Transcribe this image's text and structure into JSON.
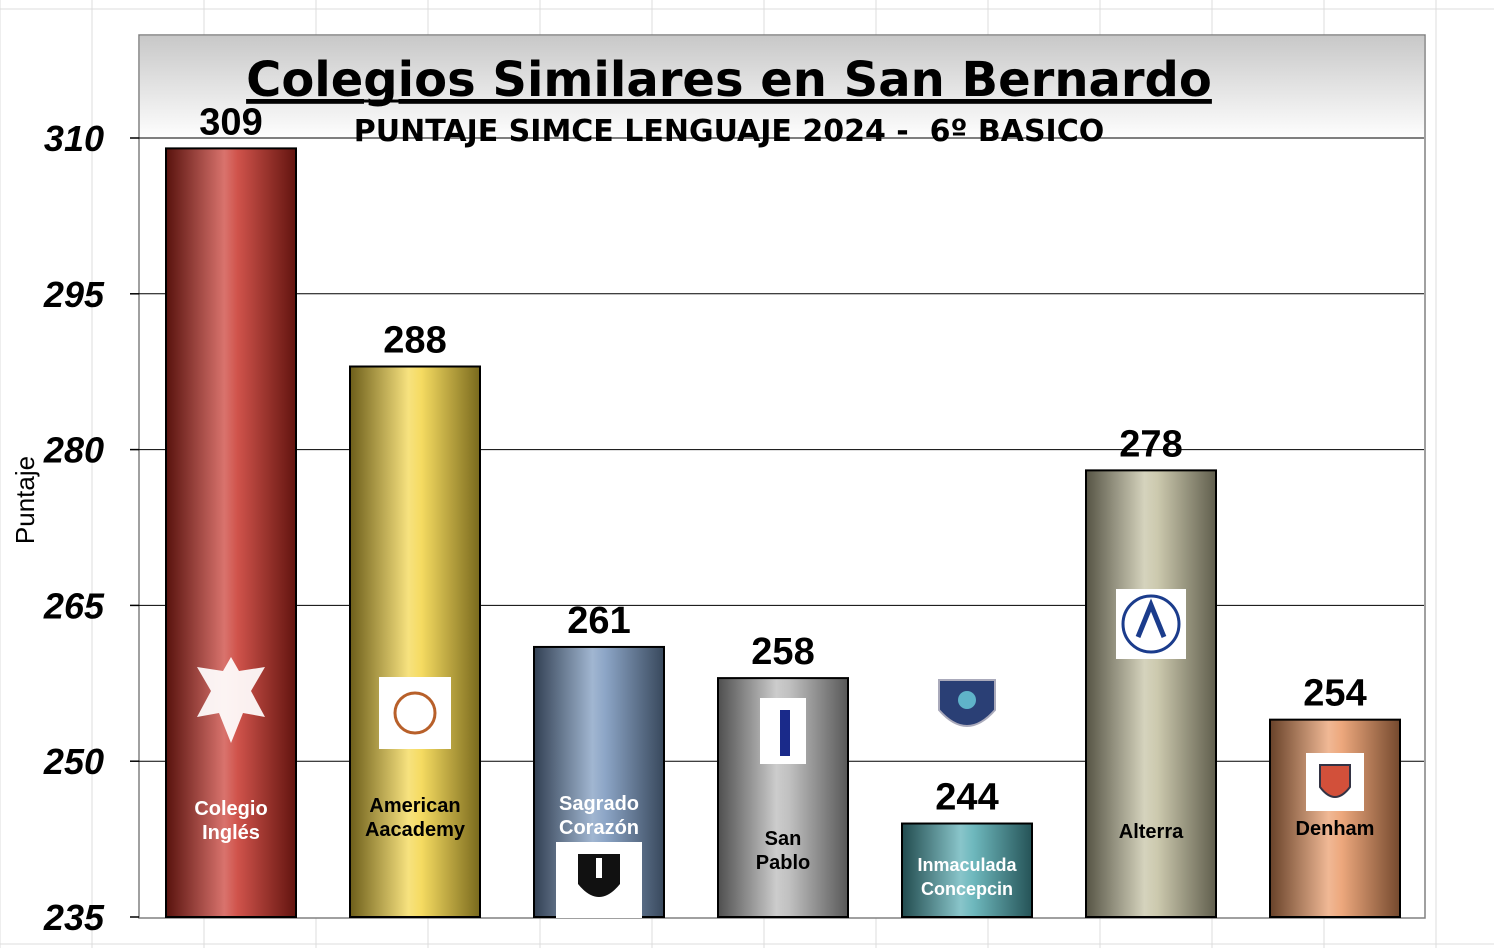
{
  "chart_data": {
    "type": "bar",
    "title": "Colegios Similares en San Bernardo",
    "subtitle": "PUNTAJE SIMCE LENGUAJE 2024 -  6º BASICO",
    "ylabel": "Puntaje",
    "ylim": [
      235,
      310
    ],
    "yticks": [
      310,
      295,
      280,
      265,
      250,
      235
    ],
    "grid": true,
    "categories": [
      [
        "Colegio",
        "Inglés"
      ],
      [
        "American",
        "Aacademy"
      ],
      [
        "Sagrado",
        "Corazón"
      ],
      [
        "San",
        "Pablo"
      ],
      [
        "Inmaculada",
        "Concepcin"
      ],
      [
        "Alterra"
      ],
      [
        "Denham"
      ]
    ],
    "values": [
      309,
      288,
      261,
      258,
      244,
      278,
      254
    ],
    "colors": [
      "#c4281e",
      "#f2d23a",
      "#6f8fb8",
      "#b0b0b0",
      "#4aa6ad",
      "#bfbb9a",
      "#e8925c"
    ],
    "label_colors": [
      "#ffffff",
      "#000000",
      "#ffffff",
      "#000000",
      "#ffffff",
      "#000000",
      "#000000"
    ],
    "logos": [
      "eagle-crest-logo",
      "american-academy-logo",
      "sagrado-corazon-shield-logo",
      "ispm-logo",
      "ic-shield-logo",
      "alterra-logo",
      "denham-crest-logo"
    ]
  }
}
